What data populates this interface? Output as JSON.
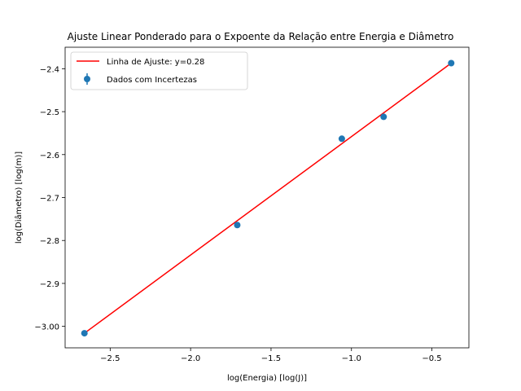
{
  "chart_data": {
    "type": "scatter",
    "title": "Ajuste Linear Ponderado para o Expoente da Relação entre Energia e Diâmetro",
    "xlabel": "log(Energia) [log(J)]",
    "ylabel": "log(Diâmetro) [log(m)]",
    "xlim": [
      -2.78,
      -0.27
    ],
    "ylim": [
      -3.05,
      -2.35
    ],
    "xticks": [
      -2.5,
      -2.0,
      -1.5,
      -1.0,
      -0.5
    ],
    "xtick_labels": [
      "−2.5",
      "−2.0",
      "−1.5",
      "−1.0",
      "−0.5"
    ],
    "yticks": [
      -3.0,
      -2.9,
      -2.8,
      -2.7,
      -2.6,
      -2.5,
      -2.4
    ],
    "ytick_labels": [
      "−3.00",
      "−2.9",
      "−2.8",
      "−2.7",
      "−2.6",
      "−2.5",
      "−2.4"
    ],
    "grid": false,
    "legend_position": "top-left",
    "series": [
      {
        "name": "Dados com Incertezas",
        "kind": "scatter-errorbar",
        "color": "#1f77b4",
        "x": [
          -2.66,
          -1.71,
          -1.06,
          -0.8,
          -0.38
        ],
        "y": [
          -3.016,
          -2.764,
          -2.563,
          -2.512,
          -2.387
        ]
      },
      {
        "name": "Linha de Ajuste: y=0.28",
        "kind": "line",
        "color": "#ff0000",
        "x": [
          -2.66,
          -0.38
        ],
        "y": [
          -3.016,
          -2.387
        ]
      }
    ]
  }
}
